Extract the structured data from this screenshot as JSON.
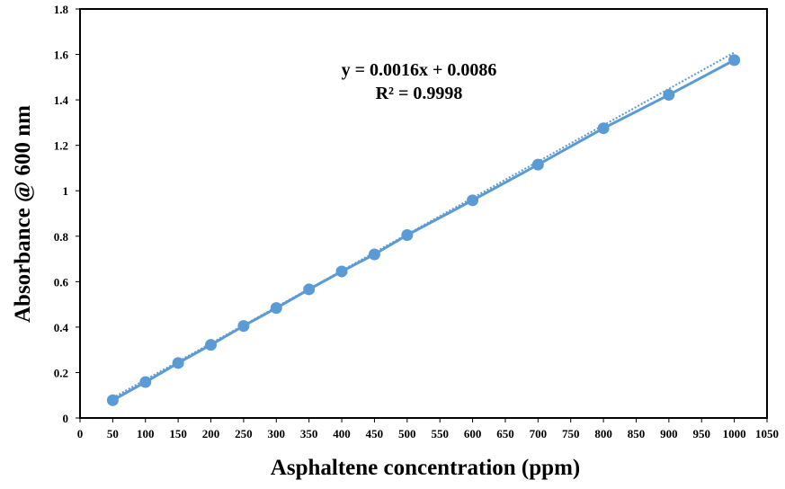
{
  "chart_data": {
    "type": "scatter",
    "xlabel": "Asphaltene concentration (ppm)",
    "ylabel": "Absorbance @ 600 nm",
    "xlim": [
      0,
      1050
    ],
    "ylim": [
      0,
      1.8
    ],
    "x_ticks": [
      "0",
      "50",
      "100",
      "150",
      "200",
      "250",
      "300",
      "350",
      "400",
      "450",
      "500",
      "550",
      "600",
      "650",
      "700",
      "750",
      "800",
      "850",
      "900",
      "950",
      "1000",
      "1050"
    ],
    "y_ticks": [
      "0",
      "0.2",
      "0.4",
      "0.6",
      "0.8",
      "1",
      "1.2",
      "1.4",
      "1.6",
      "1.8"
    ],
    "grid": false,
    "series": [
      {
        "x": [
          50,
          100,
          150,
          200,
          250,
          300,
          350,
          400,
          450,
          500,
          600,
          700,
          800,
          900,
          1000
        ],
        "y": [
          0.078,
          0.158,
          0.242,
          0.322,
          0.405,
          0.484,
          0.566,
          0.645,
          0.72,
          0.805,
          0.958,
          1.115,
          1.275,
          1.422,
          1.575
        ],
        "color": "#5b9bd5"
      }
    ],
    "trendline": {
      "slope": 0.0016,
      "intercept": 0.0086,
      "color": "#5b9bd5",
      "style": "dotted"
    },
    "annotations": {
      "equation": "y = 0.0016x + 0.0086",
      "r_squared": "R² = 0.9998"
    }
  }
}
